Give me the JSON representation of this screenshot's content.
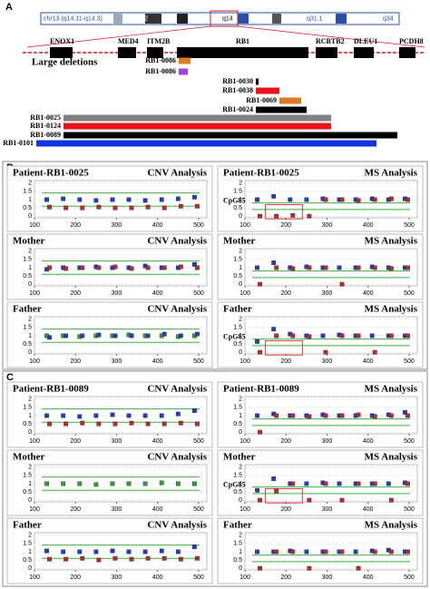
{
  "panel_a": {
    "label": "A",
    "chromosome": "chr13 (q14.11-q14.3)",
    "bands": [
      "p13",
      "p12",
      "p11.2",
      "q14",
      "q31.1",
      "q34"
    ],
    "genes": [
      "ENOX1",
      "MED4",
      "ITM2B",
      "RB1",
      "RCBTB2",
      "DLEU1",
      "PCDH8"
    ],
    "deletions_title": "Large deletions",
    "deletions": [
      {
        "label": "RB1-0086",
        "color": "#e07b20"
      },
      {
        "label": "RB1-0086",
        "color": "#a040e0"
      },
      {
        "label": "RB1-0030",
        "color": "#000000"
      },
      {
        "label": "RB1-0038",
        "color": "#e8141c"
      },
      {
        "label": "RB1-0069",
        "color": "#e07b20"
      },
      {
        "label": "RB1-0024",
        "color": "#000000"
      },
      {
        "label": "RB1-0025",
        "color": "#808080"
      },
      {
        "label": "RB1-0124",
        "color": "#e8141c"
      },
      {
        "label": "RB1-0089",
        "color": "#000000"
      },
      {
        "label": "RB1-0101",
        "color": "#1433e0"
      }
    ]
  },
  "panel_b": {
    "label": "B"
  },
  "panel_c": {
    "label": "C"
  },
  "chart_data": [
    {
      "type": "scatter",
      "title": "Patient-RB1-0025",
      "subtitle": "CNV Analysis",
      "x": [
        130,
        170,
        210,
        250,
        290,
        330,
        370,
        410,
        450,
        490
      ],
      "xlim": [
        100,
        520
      ],
      "ylim": [
        -0.1,
        2.15
      ],
      "xticks": [
        100,
        200,
        300,
        400,
        500
      ],
      "yticks": [
        0,
        0.5,
        1,
        1.5,
        2
      ],
      "thresholds": [
        1.4,
        0.6
      ],
      "threshold_color": "#3cb043",
      "series": [
        {
          "color": "#1f3fbf",
          "values": [
            1.0,
            1.05,
            1.0,
            0.95,
            1.0,
            1.0,
            0.95,
            1.0,
            1.05,
            1.15
          ]
        },
        {
          "color": "#c0282d",
          "values": [
            0.55,
            0.5,
            0.5,
            0.55,
            0.5,
            0.5,
            0.55,
            0.5,
            0.6,
            0.6
          ]
        }
      ]
    },
    {
      "type": "scatter",
      "title": "Patient-RB1-0025",
      "subtitle": "MS Analysis",
      "annotation": "CpG85",
      "x": [
        130,
        170,
        210,
        250,
        290,
        330,
        370,
        410,
        450,
        490
      ],
      "xlim": [
        100,
        520
      ],
      "ylim": [
        -0.1,
        2.15
      ],
      "xticks": [
        100,
        200,
        300,
        400,
        500
      ],
      "yticks": [
        0,
        0.5,
        1,
        1.5,
        2
      ],
      "thresholds": [
        0.8,
        0.4
      ],
      "threshold_color": "#3cb043",
      "series": [
        {
          "color": "#1f3fbf",
          "values": [
            1.0,
            1.2,
            1.0,
            1.0,
            1.05,
            1.0,
            1.0,
            1.05,
            1.0,
            1.05
          ]
        },
        {
          "color": "#c0282d",
          "values": [
            0,
            0,
            0.05,
            0,
            1.0,
            1.0,
            0.95,
            1.0,
            1.05,
            1.0
          ]
        }
      ]
    },
    {
      "type": "scatter",
      "title": "Mother",
      "subtitle": "CNV Analysis",
      "x": [
        130,
        170,
        210,
        250,
        290,
        330,
        370,
        410,
        450,
        490
      ],
      "xlim": [
        100,
        520
      ],
      "ylim": [
        -0.1,
        2.15
      ],
      "xticks": [
        100,
        200,
        300,
        400,
        500
      ],
      "yticks": [
        0,
        0.5,
        1,
        1.5,
        2
      ],
      "thresholds": [
        1.4,
        0.6
      ],
      "threshold_color": "#3cb043",
      "series": [
        {
          "color": "#1f3fbf",
          "values": [
            0.9,
            1.0,
            1.0,
            1.05,
            1.0,
            1.0,
            1.1,
            1.0,
            1.0,
            1.2
          ]
        },
        {
          "color": "#c0282d",
          "values": [
            1.0,
            0.95,
            1.0,
            1.0,
            1.05,
            0.95,
            1.0,
            1.0,
            1.05,
            1.0
          ]
        }
      ]
    },
    {
      "type": "scatter",
      "title": "Mother",
      "subtitle": "MS Analysis",
      "x": [
        130,
        170,
        210,
        250,
        290,
        330,
        370,
        410,
        450,
        490
      ],
      "xlim": [
        100,
        520
      ],
      "ylim": [
        -0.1,
        2.15
      ],
      "xticks": [
        100,
        200,
        300,
        400,
        500
      ],
      "yticks": [
        0,
        0.5,
        1,
        1.5,
        2
      ],
      "thresholds": [
        0.8,
        0.4
      ],
      "threshold_color": "#3cb043",
      "series": [
        {
          "color": "#1f3fbf",
          "values": [
            1.0,
            1.3,
            1.0,
            1.05,
            1.0,
            1.0,
            1.0,
            1.05,
            1.0,
            1.0
          ]
        },
        {
          "color": "#c0282d",
          "values": [
            0,
            1.0,
            0.95,
            1.0,
            1.0,
            0,
            1.0,
            1.0,
            0.95,
            1.0
          ]
        }
      ]
    },
    {
      "type": "scatter",
      "title": "Father",
      "subtitle": "CNV Analysis",
      "x": [
        130,
        170,
        210,
        250,
        290,
        330,
        370,
        410,
        450,
        490
      ],
      "xlim": [
        100,
        520
      ],
      "ylim": [
        -0.1,
        2.15
      ],
      "xticks": [
        100,
        200,
        300,
        400,
        500
      ],
      "yticks": [
        0,
        0.5,
        1,
        1.5,
        2
      ],
      "thresholds": [
        1.4,
        0.6
      ],
      "threshold_color": "#3cb043",
      "series": [
        {
          "color": "#3a9a3a",
          "values": [
            1.0,
            1.0,
            0.95,
            1.0,
            1.0,
            1.05,
            1.0,
            1.0,
            0.95,
            1.0
          ]
        },
        {
          "color": "#1f3fbf",
          "values": [
            0.9,
            1.0,
            1.0,
            1.05,
            1.0,
            1.0,
            1.0,
            1.1,
            1.0,
            1.1
          ]
        }
      ]
    },
    {
      "type": "scatter",
      "title": "Father",
      "subtitle": "MS Analysis",
      "annotation": "CpG85",
      "x": [
        130,
        170,
        210,
        250,
        290,
        330,
        370,
        410,
        450,
        490
      ],
      "xlim": [
        100,
        520
      ],
      "ylim": [
        -0.1,
        2.15
      ],
      "xticks": [
        100,
        200,
        300,
        400,
        500
      ],
      "yticks": [
        0,
        0.5,
        1,
        1.5,
        2
      ],
      "thresholds": [
        0.8,
        0.4
      ],
      "threshold_color": "#3cb043",
      "series": [
        {
          "color": "#1f3fbf",
          "values": [
            0.65,
            1.4,
            1.1,
            1.0,
            1.0,
            1.05,
            1.0,
            1.0,
            1.0,
            1.0
          ]
        },
        {
          "color": "#c0282d",
          "values": [
            0,
            1.0,
            1.0,
            0.95,
            0,
            1.0,
            1.0,
            0,
            1.0,
            1.0
          ]
        }
      ]
    },
    {
      "type": "scatter",
      "title": "Patient-RB1-0089",
      "subtitle": "CNV Analysis",
      "x": [
        130,
        170,
        210,
        250,
        290,
        330,
        370,
        410,
        450,
        490
      ],
      "xlim": [
        100,
        520
      ],
      "ylim": [
        -0.1,
        2.15
      ],
      "xticks": [
        100,
        200,
        300,
        400,
        500
      ],
      "yticks": [
        0,
        0.5,
        1,
        1.5,
        2
      ],
      "thresholds": [
        1.4,
        0.6
      ],
      "threshold_color": "#3cb043",
      "series": [
        {
          "color": "#1f3fbf",
          "values": [
            1.0,
            1.0,
            0.95,
            1.0,
            1.05,
            1.0,
            1.0,
            1.0,
            1.1,
            1.3
          ]
        },
        {
          "color": "#c0282d",
          "values": [
            0.5,
            0.5,
            0.55,
            0.5,
            0.5,
            0.55,
            0.5,
            0.5,
            0.55,
            0.5
          ]
        }
      ]
    },
    {
      "type": "scatter",
      "title": "Patient-RB1-0089",
      "subtitle": "MS Analysis",
      "x": [
        130,
        170,
        210,
        250,
        290,
        330,
        370,
        410,
        450,
        490
      ],
      "xlim": [
        100,
        520
      ],
      "ylim": [
        -0.1,
        2.15
      ],
      "xticks": [
        100,
        200,
        300,
        400,
        500
      ],
      "yticks": [
        0,
        0.5,
        1,
        1.5,
        2
      ],
      "thresholds": [
        0.8,
        0.4
      ],
      "threshold_color": "#3cb043",
      "series": [
        {
          "color": "#1f3fbf",
          "values": [
            1.0,
            1.1,
            1.0,
            1.0,
            1.05,
            1.0,
            1.0,
            1.0,
            1.05,
            1.2
          ]
        },
        {
          "color": "#c0282d",
          "values": [
            0,
            1.0,
            1.0,
            0.95,
            1.0,
            1.0,
            1.05,
            0.95,
            1.0,
            1.0
          ]
        }
      ]
    },
    {
      "type": "scatter",
      "title": "Mother",
      "subtitle": "CNV Analysis",
      "x": [
        130,
        170,
        210,
        250,
        290,
        330,
        370,
        410,
        450,
        490
      ],
      "xlim": [
        100,
        520
      ],
      "ylim": [
        -0.1,
        2.15
      ],
      "xticks": [
        100,
        200,
        300,
        400,
        500
      ],
      "yticks": [
        0,
        0.5,
        1,
        1.5,
        2
      ],
      "thresholds": [
        1.4,
        0.6
      ],
      "threshold_color": "#3cb043",
      "series": [
        {
          "color": "#3a9a3a",
          "values": [
            1.0,
            1.0,
            1.0,
            0.95,
            1.0,
            1.0,
            1.0,
            1.05,
            1.0,
            1.0
          ]
        }
      ]
    },
    {
      "type": "scatter",
      "title": "Mother",
      "subtitle": "MS Analysis",
      "annotation": "CpG85",
      "x": [
        130,
        170,
        210,
        250,
        290,
        330,
        370,
        410,
        450,
        490
      ],
      "xlim": [
        100,
        520
      ],
      "ylim": [
        -0.1,
        2.15
      ],
      "xticks": [
        100,
        200,
        300,
        400,
        500
      ],
      "yticks": [
        0,
        0.5,
        1,
        1.5,
        2
      ],
      "thresholds": [
        0.8,
        0.4
      ],
      "threshold_color": "#3cb043",
      "series": [
        {
          "color": "#1f3fbf",
          "values": [
            0.6,
            1.3,
            1.0,
            1.0,
            1.05,
            1.0,
            1.0,
            1.0,
            1.0,
            1.05
          ]
        },
        {
          "color": "#c0282d",
          "values": [
            0,
            0.55,
            1.0,
            0,
            1.0,
            0,
            1.0,
            1.0,
            0,
            1.0
          ]
        }
      ]
    },
    {
      "type": "scatter",
      "title": "Father",
      "subtitle": "CNV Analysis",
      "x": [
        130,
        170,
        210,
        250,
        290,
        330,
        370,
        410,
        450,
        490
      ],
      "xlim": [
        100,
        520
      ],
      "ylim": [
        -0.1,
        2.15
      ],
      "xticks": [
        100,
        200,
        300,
        400,
        500
      ],
      "yticks": [
        0,
        0.5,
        1,
        1.5,
        2
      ],
      "thresholds": [
        1.4,
        0.6
      ],
      "threshold_color": "#3cb043",
      "series": [
        {
          "color": "#1f3fbf",
          "values": [
            1.05,
            1.0,
            1.0,
            1.0,
            1.05,
            1.0,
            1.0,
            1.05,
            1.0,
            1.3
          ]
        },
        {
          "color": "#c0282d",
          "values": [
            0.55,
            0.55,
            0.6,
            0.5,
            0.6,
            0.55,
            0.6,
            0.6,
            0.55,
            0.6
          ]
        }
      ]
    },
    {
      "type": "scatter",
      "title": "Father",
      "subtitle": "MS Analysis",
      "x": [
        130,
        170,
        210,
        250,
        290,
        330,
        370,
        410,
        450,
        490
      ],
      "xlim": [
        100,
        520
      ],
      "ylim": [
        -0.1,
        2.15
      ],
      "xticks": [
        100,
        200,
        300,
        400,
        500
      ],
      "yticks": [
        0,
        0.5,
        1,
        1.5,
        2
      ],
      "thresholds": [
        0.8,
        0.4
      ],
      "threshold_color": "#3cb043",
      "series": [
        {
          "color": "#1f3fbf",
          "values": [
            1.0,
            1.0,
            1.05,
            1.0,
            1.0,
            1.0,
            1.0,
            1.05,
            1.1,
            1.0
          ]
        },
        {
          "color": "#c0282d",
          "values": [
            0,
            1.0,
            1.0,
            0,
            1.0,
            1.0,
            0,
            1.0,
            1.0,
            1.0
          ]
        }
      ]
    }
  ]
}
